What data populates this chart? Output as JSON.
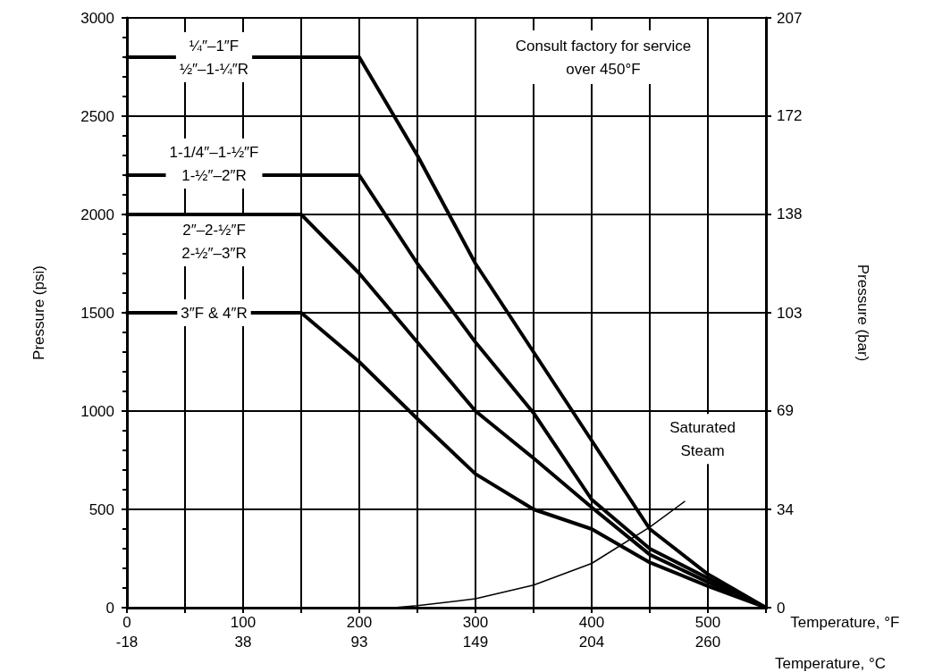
{
  "chart_data": {
    "type": "line",
    "xlabel": "Temperature, °F",
    "x2label": "Temperature, °C",
    "ylabel": "Pressure (psi)",
    "y2label": "Pressure (bar)",
    "xlim": [
      0,
      550
    ],
    "xticks": [
      0,
      {
        "value": 50,
        "label": null
      },
      100,
      {
        "value": 150,
        "label": null
      },
      200,
      {
        "value": 250,
        "label": null
      },
      300,
      {
        "value": 350,
        "label": null
      },
      400,
      {
        "value": 450,
        "label": null
      },
      500,
      {
        "value": 550,
        "label": null
      }
    ],
    "x2lim": [
      -17.78,
      287.78
    ],
    "x2ticks": [
      {
        "value": -17.78,
        "label": "-18"
      },
      {
        "value": 37.78,
        "label": "38"
      },
      {
        "value": 93.33,
        "label": "93"
      },
      {
        "value": 148.89,
        "label": "149"
      },
      {
        "value": 204.44,
        "label": "204"
      },
      260
    ],
    "ylim": [
      0,
      3000
    ],
    "yticks": [
      0,
      500,
      1000,
      1500,
      2000,
      2500,
      3000
    ],
    "y2lim": [
      0,
      206.84
    ],
    "y2ticks": [
      0,
      {
        "value": 34.47,
        "label": "34"
      },
      {
        "value": 68.95,
        "label": "69"
      },
      {
        "value": 103.42,
        "label": "103"
      },
      {
        "value": 137.9,
        "label": "138"
      },
      {
        "value": 172.37,
        "label": "172"
      },
      {
        "value": 206.84,
        "label": "207"
      }
    ],
    "grid": true,
    "marker": "none",
    "line_style": "solid",
    "legend": false,
    "annotations": [
      "Consult factory for service over 450°F"
    ],
    "series": [
      {
        "name": "¼″–1″F\n½″–1-¼″R",
        "color": "#000000",
        "x": [
          0,
          200,
          250,
          300,
          350,
          400,
          450,
          500,
          550
        ],
        "values": [
          2800,
          2800,
          2300,
          1750,
          1300,
          850,
          400,
          170,
          0
        ]
      },
      {
        "name": "1-1/4″–1-½″F\n1-½″–2″R",
        "color": "#000000",
        "x": [
          0,
          200,
          250,
          300,
          350,
          400,
          450,
          500,
          550
        ],
        "values": [
          2200,
          2200,
          1750,
          1350,
          990,
          550,
          300,
          150,
          0
        ]
      },
      {
        "name": "2″–2-½″F\n2-½″–3″R",
        "color": "#000000",
        "x": [
          0,
          150,
          200,
          250,
          300,
          350,
          400,
          450,
          500,
          550
        ],
        "values": [
          2000,
          2000,
          1700,
          1350,
          1000,
          760,
          510,
          270,
          130,
          0
        ]
      },
      {
        "name": "3″F & 4″R",
        "color": "#000000",
        "x": [
          0,
          150,
          200,
          250,
          300,
          350,
          400,
          450,
          500,
          550
        ],
        "values": [
          1500,
          1500,
          1250,
          960,
          680,
          500,
          400,
          230,
          110,
          0
        ]
      },
      {
        "name": "Saturated\nSteam",
        "color": "#000000",
        "x": [
          230,
          250,
          300,
          350,
          400,
          450,
          480
        ],
        "values": [
          0,
          10,
          45,
          115,
          225,
          410,
          540
        ]
      }
    ]
  }
}
